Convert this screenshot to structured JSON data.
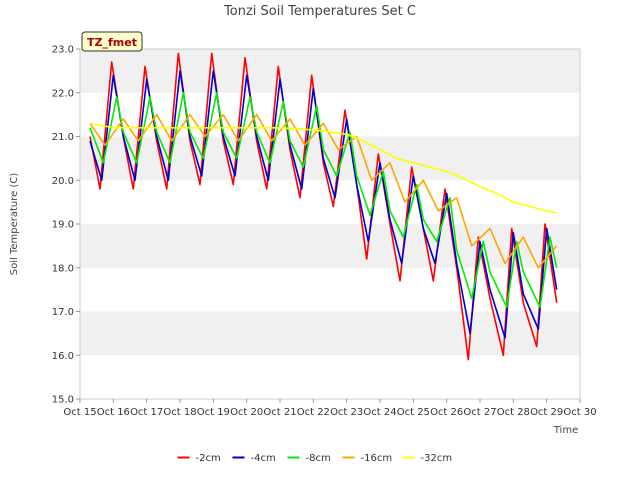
{
  "chart_data": {
    "type": "line",
    "title": "Tonzi Soil Temperatures Set C",
    "xlabel": "Time",
    "ylabel": "Soil Temperature (C)",
    "badge": "TZ_fmet",
    "ylim": [
      15.0,
      23.0
    ],
    "xlim": [
      15,
      30
    ],
    "y_ticks": [
      "15.0",
      "16.0",
      "17.0",
      "18.0",
      "19.0",
      "20.0",
      "21.0",
      "22.0",
      "23.0"
    ],
    "x_ticks": [
      "Oct 15",
      "Oct 16",
      "Oct 17",
      "Oct 18",
      "Oct 19",
      "Oct 20",
      "Oct 21",
      "Oct 22",
      "Oct 23",
      "Oct 24",
      "Oct 25",
      "Oct 26",
      "Oct 27",
      "Oct 28",
      "Oct 29",
      "Oct 30"
    ],
    "legend_position": "bottom",
    "grid": "alternating horizontal bands",
    "series": [
      {
        "name": "-2cm",
        "color": "#ff0000",
        "x": [
          15.3,
          15.6,
          15.95,
          16.3,
          16.6,
          16.95,
          17.3,
          17.6,
          17.95,
          18.3,
          18.6,
          18.95,
          19.3,
          19.6,
          19.95,
          20.3,
          20.6,
          20.95,
          21.3,
          21.6,
          21.95,
          22.3,
          22.6,
          22.95,
          23.3,
          23.6,
          23.95,
          24.3,
          24.6,
          24.95,
          25.3,
          25.6,
          25.95,
          26.3,
          26.65,
          26.95,
          27.3,
          27.7,
          27.95,
          28.3,
          28.7,
          28.95,
          29.3
        ],
        "y": [
          21.0,
          19.8,
          22.7,
          21.0,
          19.8,
          22.6,
          20.9,
          19.8,
          22.9,
          20.9,
          19.9,
          22.9,
          20.9,
          19.9,
          22.8,
          20.9,
          19.8,
          22.6,
          20.7,
          19.6,
          22.4,
          20.4,
          19.4,
          21.6,
          19.9,
          18.2,
          20.6,
          19.0,
          17.7,
          20.3,
          18.9,
          17.7,
          19.8,
          18.0,
          15.9,
          18.7,
          17.3,
          16.0,
          18.9,
          17.2,
          16.2,
          19.0,
          17.2
        ]
      },
      {
        "name": "-4cm",
        "color": "#0000cc",
        "x": [
          15.3,
          15.65,
          16.0,
          16.3,
          16.65,
          17.0,
          17.3,
          17.65,
          18.0,
          18.3,
          18.65,
          19.0,
          19.3,
          19.65,
          20.0,
          20.3,
          20.65,
          21.0,
          21.3,
          21.65,
          22.0,
          22.3,
          22.65,
          23.0,
          23.3,
          23.65,
          24.0,
          24.3,
          24.65,
          25.0,
          25.3,
          25.65,
          26.0,
          26.3,
          26.7,
          27.0,
          27.3,
          27.75,
          28.0,
          28.3,
          28.75,
          29.0,
          29.3
        ],
        "y": [
          20.9,
          20.0,
          22.4,
          21.0,
          20.0,
          22.3,
          21.0,
          20.0,
          22.5,
          21.0,
          20.1,
          22.5,
          21.0,
          20.1,
          22.4,
          21.0,
          20.0,
          22.3,
          20.8,
          19.8,
          22.1,
          20.5,
          19.6,
          21.4,
          19.9,
          18.6,
          20.4,
          19.1,
          18.1,
          20.1,
          18.9,
          18.1,
          19.7,
          18.1,
          16.5,
          18.6,
          17.5,
          16.4,
          18.8,
          17.4,
          16.6,
          18.9,
          17.5
        ]
      },
      {
        "name": "-8cm",
        "color": "#00ee00",
        "x": [
          15.3,
          15.7,
          16.1,
          16.3,
          16.7,
          17.1,
          17.3,
          17.7,
          18.1,
          18.3,
          18.7,
          19.1,
          19.3,
          19.7,
          20.1,
          20.3,
          20.7,
          21.1,
          21.3,
          21.7,
          22.1,
          22.3,
          22.7,
          23.1,
          23.3,
          23.7,
          24.1,
          24.3,
          24.7,
          25.1,
          25.3,
          25.7,
          26.1,
          26.3,
          26.75,
          27.1,
          27.3,
          27.8,
          28.1,
          28.3,
          28.8,
          29.1,
          29.3
        ],
        "y": [
          21.2,
          20.4,
          21.9,
          21.1,
          20.4,
          21.9,
          21.1,
          20.4,
          22.0,
          21.1,
          20.5,
          22.0,
          21.1,
          20.5,
          21.9,
          21.1,
          20.4,
          21.8,
          20.9,
          20.3,
          21.7,
          20.7,
          20.1,
          21.1,
          20.1,
          19.2,
          20.2,
          19.3,
          18.7,
          19.9,
          19.1,
          18.6,
          19.6,
          18.4,
          17.3,
          18.6,
          17.9,
          17.1,
          18.6,
          17.9,
          17.1,
          18.7,
          18.0
        ]
      },
      {
        "name": "-16cm",
        "color": "#ffa500",
        "x": [
          15.3,
          15.75,
          16.3,
          16.75,
          17.3,
          17.75,
          18.3,
          18.75,
          19.3,
          19.75,
          20.3,
          20.75,
          21.3,
          21.75,
          22.3,
          22.75,
          23.3,
          23.75,
          24.3,
          24.75,
          25.3,
          25.75,
          26.3,
          26.75,
          27.3,
          27.75,
          28.3,
          28.75,
          29.3
        ],
        "y": [
          21.3,
          20.8,
          21.4,
          20.9,
          21.5,
          20.9,
          21.5,
          21.0,
          21.5,
          20.9,
          21.5,
          20.9,
          21.4,
          20.8,
          21.3,
          20.7,
          21.0,
          20.0,
          20.4,
          19.5,
          20.0,
          19.3,
          19.6,
          18.5,
          18.9,
          18.1,
          18.7,
          18.0,
          18.5
        ]
      },
      {
        "name": "-32cm",
        "color": "#ffff00",
        "x": [
          15.3,
          16.0,
          17.0,
          18.0,
          19.0,
          20.0,
          21.0,
          22.0,
          22.5,
          23.0,
          23.5,
          24.0,
          24.5,
          25.0,
          25.5,
          26.0,
          26.5,
          27.0,
          27.5,
          28.0,
          28.5,
          29.0,
          29.3
        ],
        "y": [
          21.3,
          21.2,
          21.2,
          21.2,
          21.2,
          21.2,
          21.2,
          21.15,
          21.1,
          21.05,
          20.9,
          20.7,
          20.5,
          20.4,
          20.3,
          20.2,
          20.05,
          19.85,
          19.7,
          19.5,
          19.4,
          19.3,
          19.25
        ]
      }
    ]
  }
}
